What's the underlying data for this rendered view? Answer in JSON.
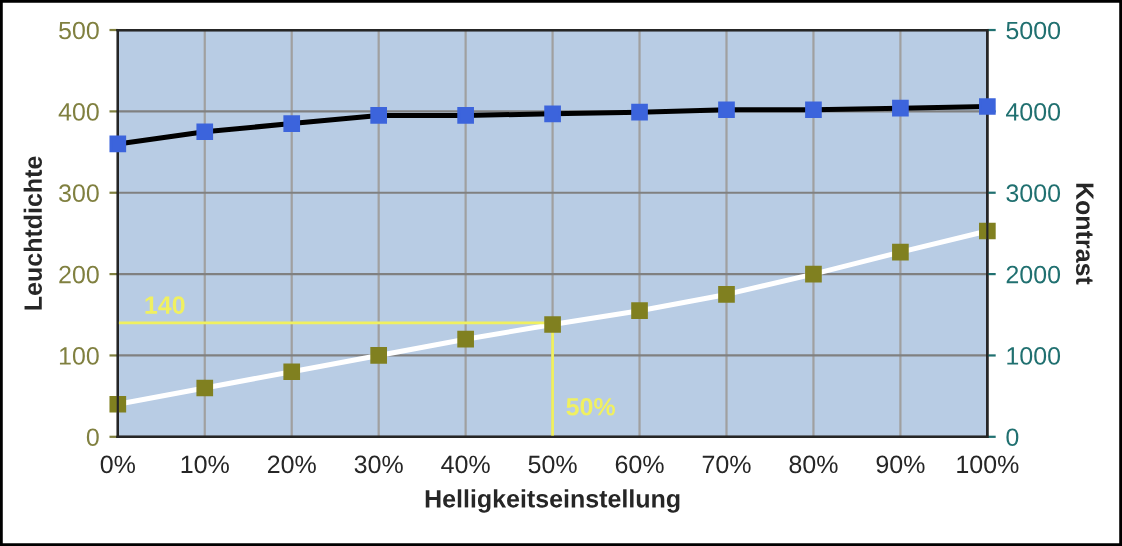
{
  "chart_data": {
    "type": "line",
    "xlabel": "Helligkeitseinstellung",
    "ylabel": "Leuchtdichte",
    "y2label": "Kontrast",
    "x": [
      0,
      10,
      20,
      30,
      40,
      50,
      60,
      70,
      80,
      90,
      100
    ],
    "series": [
      {
        "color": "#808020",
        "values": [
          40,
          60,
          80,
          100,
          120,
          138,
          155,
          175,
          200,
          227,
          253
        ]
      },
      {
        "color": "#3c64dc",
        "axis": "y2",
        "values": [
          3600,
          3750,
          3850,
          3950,
          3950,
          3970,
          3990,
          4020,
          4020,
          4040,
          4060
        ]
      }
    ],
    "xlim": [
      0,
      100
    ],
    "xticks": [
      {
        "value": 0,
        "label": "0%"
      },
      {
        "value": 10,
        "label": "10%"
      },
      {
        "value": 20,
        "label": "20%"
      },
      {
        "value": 30,
        "label": "30%"
      },
      {
        "value": 40,
        "label": "40%"
      },
      {
        "value": 50,
        "label": "50%"
      },
      {
        "value": 60,
        "label": "60%"
      },
      {
        "value": 70,
        "label": "70%"
      },
      {
        "value": 80,
        "label": "80%"
      },
      {
        "value": 90,
        "label": "90%"
      },
      {
        "value": 100,
        "label": "100%"
      }
    ],
    "ylim": [
      0,
      500
    ],
    "yticks": [
      0,
      100,
      200,
      300,
      400,
      500
    ],
    "y2lim": [
      0,
      5000
    ],
    "y2ticks": [
      0,
      1000,
      2000,
      3000,
      4000,
      5000
    ],
    "ref_lines": [
      {
        "axis": "y",
        "value": 140,
        "label": "140",
        "color": "#f0f060"
      },
      {
        "axis": "x",
        "value": 50,
        "label": "50%",
        "color": "#f0f060"
      }
    ],
    "grid": true,
    "marker": "square",
    "line_style": "solid",
    "legend": false
  }
}
